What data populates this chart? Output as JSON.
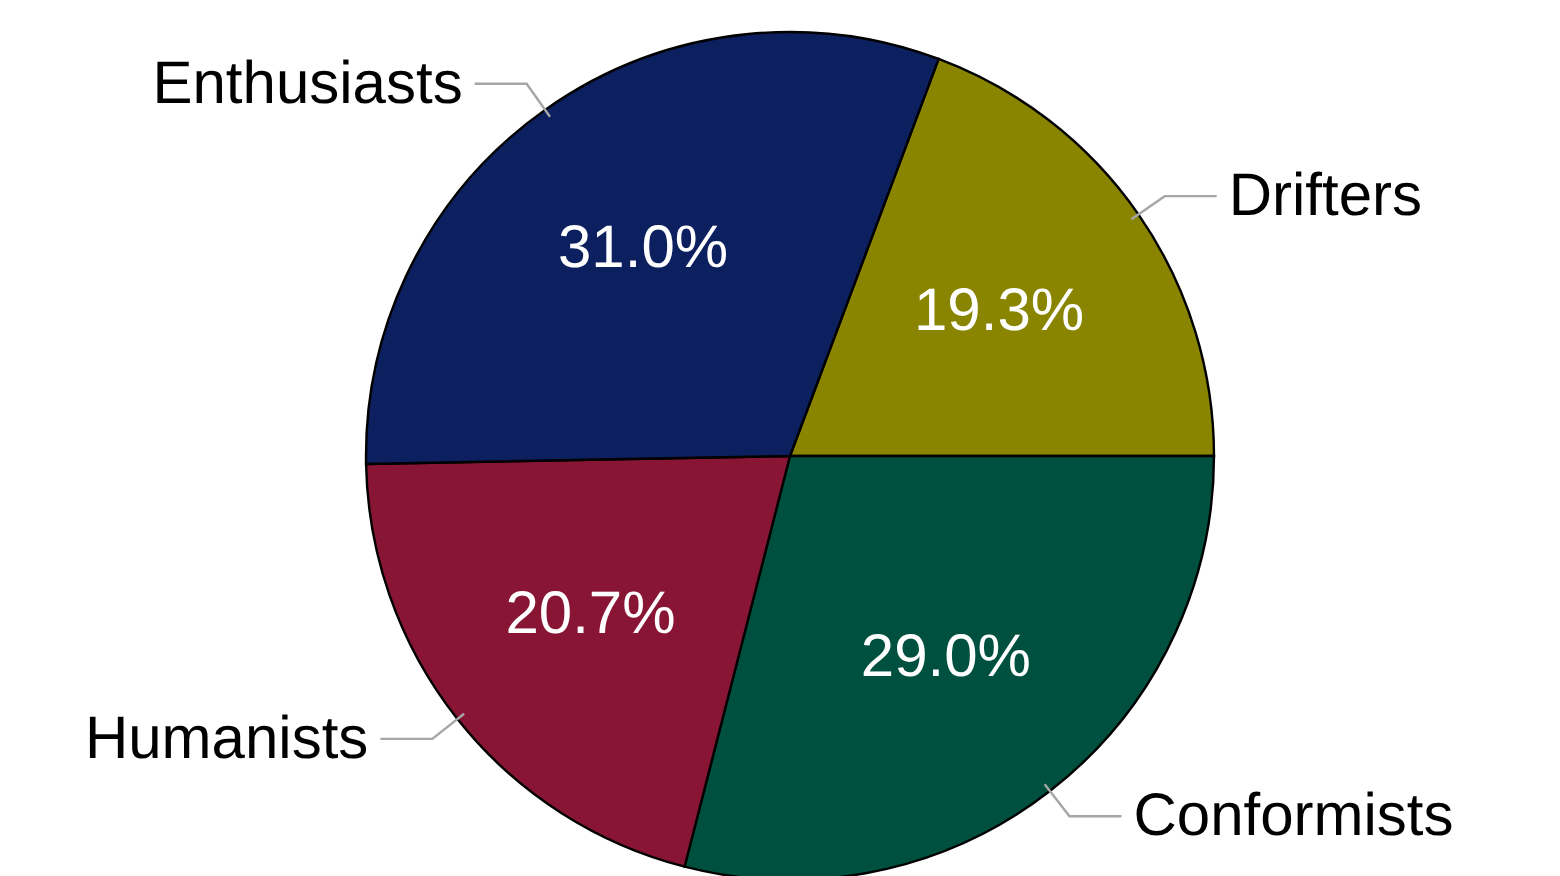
{
  "chart_data": {
    "type": "pie",
    "categories": [
      "Drifters",
      "Conformists",
      "Humanists",
      "Enthusiasts"
    ],
    "values": [
      19.3,
      29.0,
      20.7,
      31.0
    ],
    "colors": [
      "#898500",
      "#00503f",
      "#891535",
      "#0c1f5e"
    ],
    "value_labels": [
      "19.3%",
      "29.0%",
      "20.7%",
      "31.0%"
    ]
  }
}
